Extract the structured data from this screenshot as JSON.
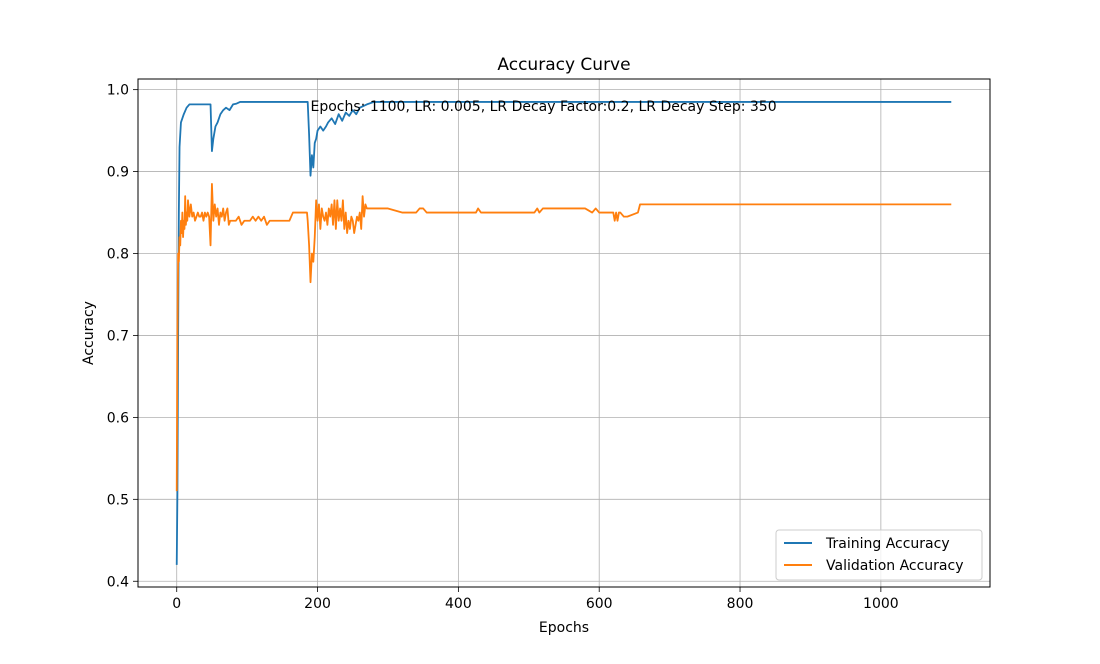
{
  "chart_data": {
    "type": "line",
    "title": "Accuracy Curve",
    "xlabel": "Epochs",
    "ylabel": "Accuracy",
    "xlim": [
      -55,
      1155
    ],
    "ylim": [
      0.393,
      1.013
    ],
    "xticks": [
      0,
      200,
      400,
      600,
      800,
      1000
    ],
    "xtick_labels": [
      "0",
      "200",
      "400",
      "600",
      "800",
      "1000"
    ],
    "yticks": [
      0.4,
      0.5,
      0.6,
      0.7,
      0.8,
      0.9,
      1.0
    ],
    "ytick_labels": [
      "0.4",
      "0.5",
      "0.6",
      "0.7",
      "0.8",
      "0.9",
      "1.0"
    ],
    "grid": true,
    "legend_position": "bottom-right",
    "annotation": {
      "text": "Epochs: 1100, LR: 0.005, LR Decay Factor:0.2, LR Decay Step: 350",
      "x": 190,
      "y": 0.98
    },
    "series": [
      {
        "name": "Training Accuracy",
        "color": "#1f77b4",
        "x": [
          0,
          1,
          2,
          3,
          4,
          6,
          8,
          10,
          14,
          18,
          25,
          35,
          48,
          50,
          52,
          55,
          58,
          62,
          66,
          70,
          75,
          80,
          85,
          90,
          100,
          120,
          150,
          186,
          188,
          190,
          192,
          194,
          196,
          198,
          200,
          204,
          208,
          212,
          215,
          220,
          225,
          230,
          235,
          240,
          245,
          250,
          255,
          260,
          265,
          270,
          280,
          300,
          400,
          500,
          600,
          700,
          800,
          900,
          1000,
          1100
        ],
        "y": [
          0.42,
          0.51,
          0.7,
          0.85,
          0.93,
          0.96,
          0.965,
          0.97,
          0.978,
          0.982,
          0.982,
          0.982,
          0.982,
          0.925,
          0.94,
          0.955,
          0.96,
          0.97,
          0.975,
          0.978,
          0.975,
          0.982,
          0.983,
          0.985,
          0.985,
          0.985,
          0.985,
          0.985,
          0.945,
          0.895,
          0.92,
          0.905,
          0.935,
          0.94,
          0.95,
          0.955,
          0.95,
          0.955,
          0.96,
          0.965,
          0.958,
          0.97,
          0.962,
          0.972,
          0.968,
          0.975,
          0.97,
          0.978,
          0.98,
          0.982,
          0.985,
          0.985,
          0.985,
          0.985,
          0.985,
          0.985,
          0.985,
          0.985,
          0.985,
          0.985
        ]
      },
      {
        "name": "Validation Accuracy",
        "color": "#ff7f0e",
        "x": [
          0,
          1,
          2,
          3,
          4,
          5,
          6,
          7,
          8,
          9,
          10,
          11,
          12,
          13,
          14,
          15,
          16,
          18,
          20,
          22,
          24,
          26,
          28,
          30,
          32,
          34,
          36,
          38,
          40,
          42,
          44,
          46,
          48,
          50,
          52,
          54,
          56,
          58,
          60,
          62,
          64,
          66,
          68,
          70,
          72,
          74,
          76,
          78,
          80,
          84,
          88,
          92,
          96,
          100,
          104,
          108,
          112,
          116,
          120,
          124,
          128,
          132,
          136,
          140,
          160,
          165,
          185,
          186,
          188,
          190,
          192,
          194,
          196,
          198,
          200,
          202,
          204,
          206,
          208,
          210,
          212,
          214,
          216,
          218,
          220,
          222,
          224,
          226,
          228,
          230,
          232,
          234,
          236,
          238,
          240,
          242,
          244,
          246,
          248,
          250,
          252,
          254,
          256,
          258,
          260,
          262,
          264,
          266,
          268,
          270,
          275,
          300,
          320,
          340,
          345,
          350,
          355,
          360,
          400,
          425,
          428,
          432,
          435,
          450,
          500,
          508,
          512,
          515,
          520,
          550,
          580,
          590,
          595,
          600,
          602,
          620,
          622,
          624,
          626,
          628,
          630,
          635,
          640,
          655,
          658,
          660,
          700,
          800,
          900,
          1000,
          1100
        ],
        "y": [
          0.51,
          0.7,
          0.8,
          0.79,
          0.82,
          0.81,
          0.84,
          0.825,
          0.85,
          0.82,
          0.84,
          0.83,
          0.87,
          0.835,
          0.85,
          0.84,
          0.865,
          0.845,
          0.86,
          0.845,
          0.85,
          0.84,
          0.845,
          0.85,
          0.845,
          0.845,
          0.85,
          0.84,
          0.85,
          0.845,
          0.85,
          0.845,
          0.81,
          0.885,
          0.84,
          0.86,
          0.845,
          0.855,
          0.835,
          0.85,
          0.845,
          0.855,
          0.84,
          0.85,
          0.855,
          0.835,
          0.84,
          0.84,
          0.84,
          0.84,
          0.845,
          0.835,
          0.84,
          0.84,
          0.84,
          0.845,
          0.84,
          0.845,
          0.84,
          0.845,
          0.835,
          0.84,
          0.84,
          0.84,
          0.84,
          0.85,
          0.85,
          0.84,
          0.81,
          0.765,
          0.8,
          0.79,
          0.82,
          0.865,
          0.84,
          0.86,
          0.83,
          0.855,
          0.845,
          0.84,
          0.85,
          0.835,
          0.855,
          0.845,
          0.86,
          0.835,
          0.865,
          0.83,
          0.865,
          0.84,
          0.855,
          0.84,
          0.865,
          0.83,
          0.85,
          0.825,
          0.84,
          0.83,
          0.845,
          0.84,
          0.825,
          0.835,
          0.845,
          0.84,
          0.85,
          0.83,
          0.87,
          0.845,
          0.86,
          0.855,
          0.855,
          0.855,
          0.85,
          0.85,
          0.855,
          0.855,
          0.85,
          0.85,
          0.85,
          0.85,
          0.855,
          0.85,
          0.85,
          0.85,
          0.85,
          0.85,
          0.855,
          0.85,
          0.855,
          0.855,
          0.855,
          0.85,
          0.855,
          0.85,
          0.85,
          0.85,
          0.84,
          0.85,
          0.84,
          0.85,
          0.85,
          0.845,
          0.845,
          0.85,
          0.86,
          0.86,
          0.86,
          0.86,
          0.86,
          0.86,
          0.86
        ]
      }
    ]
  }
}
